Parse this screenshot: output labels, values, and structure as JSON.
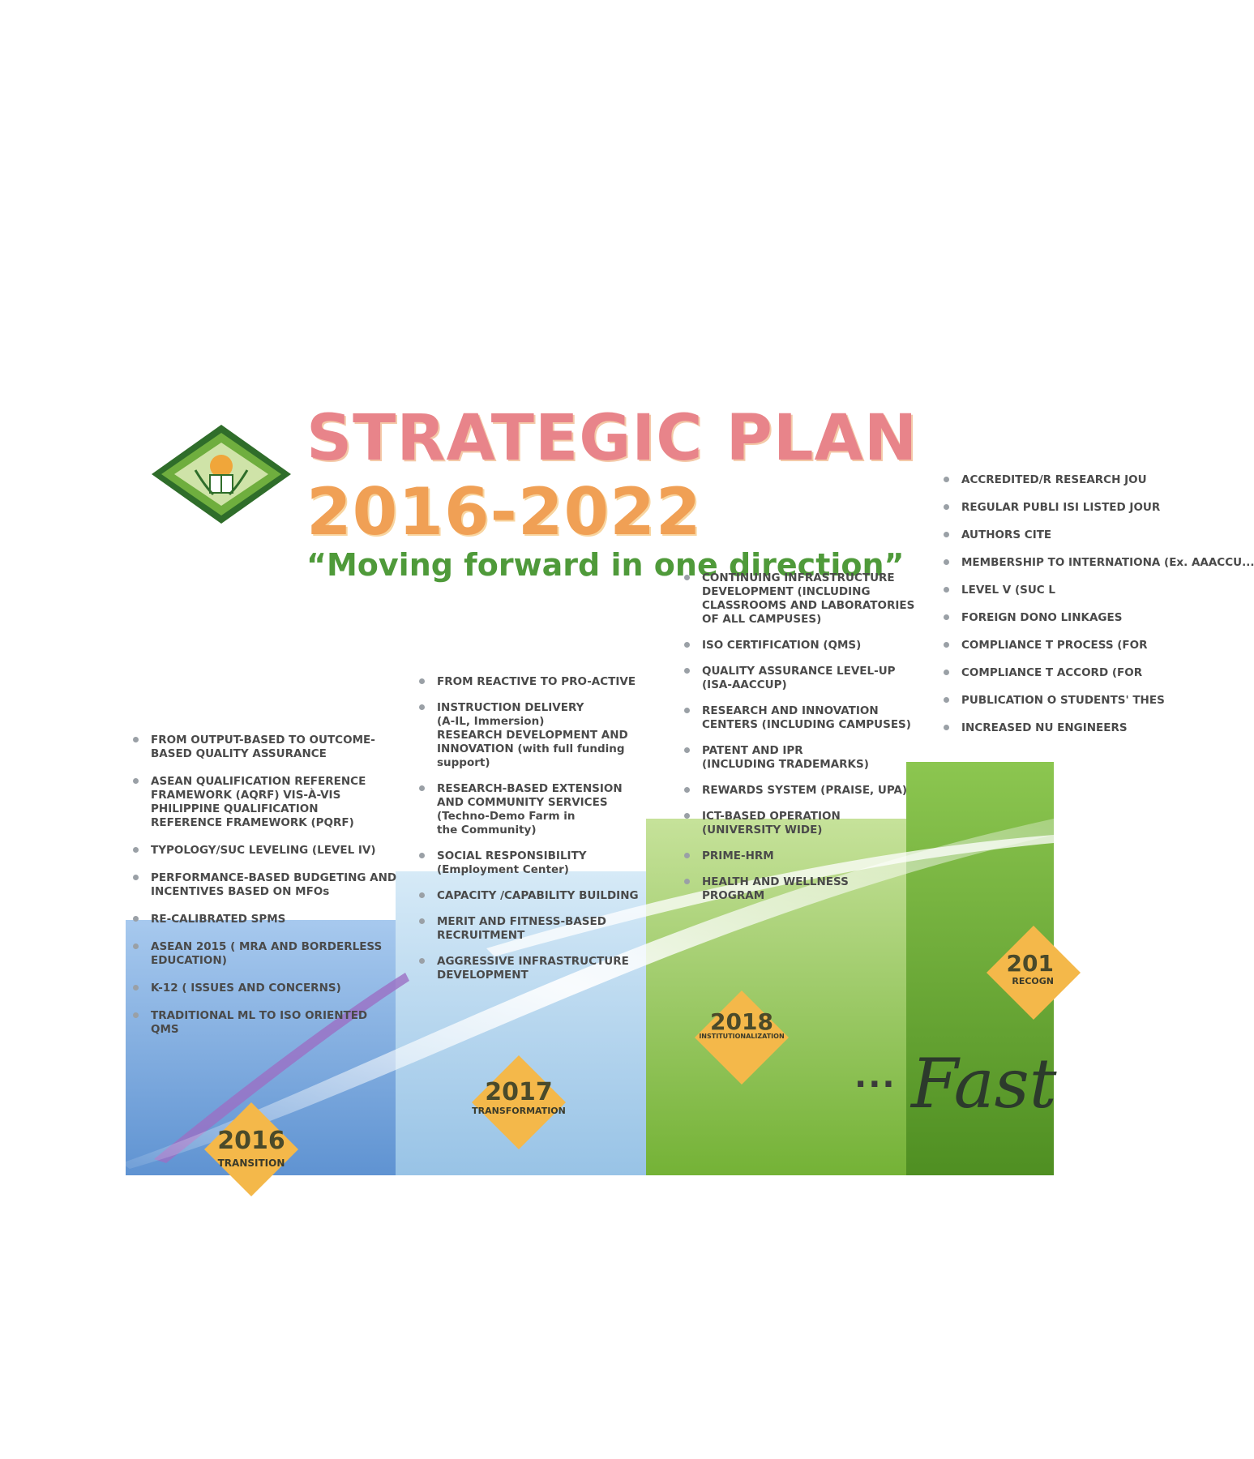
{
  "header": {
    "title_line1": "STRATEGIC PLAN",
    "title_line2": "2016-2022",
    "subtitle": "“Moving forward in one direction”",
    "logo_icon": "university-seal-icon"
  },
  "columns": {
    "y2016": {
      "year": "2016",
      "phase": "TRANSITION",
      "items": [
        "FROM OUTPUT-BASED TO OUTCOME-\nBASED QUALITY ASSURANCE",
        "ASEAN QUALIFICATION REFERENCE\nFRAMEWORK (AQRF) VIS-À-VIS\nPHILIPPINE QUALIFICATION\nREFERENCE FRAMEWORK (PQRF)",
        "TYPOLOGY/SUC LEVELING (LEVEL IV)",
        "PERFORMANCE-BASED BUDGETING AND\nINCENTIVES BASED ON MFOs",
        "RE-CALIBRATED SPMS",
        "ASEAN 2015 ( MRA AND BORDERLESS\nEDUCATION)",
        "K-12 ( ISSUES AND CONCERNS)",
        "TRADITIONAL ML TO ISO ORIENTED QMS"
      ]
    },
    "y2017": {
      "year": "2017",
      "phase": "TRANSFORMATION",
      "items": [
        "FROM REACTIVE TO PRO-ACTIVE",
        "INSTRUCTION DELIVERY\n(A-IL, Immersion)\nRESEARCH DEVELOPMENT AND\nINNOVATION (with full funding\nsupport)",
        "RESEARCH-BASED EXTENSION\nAND COMMUNITY SERVICES\n(Techno-Demo Farm in\nthe Community)",
        "SOCIAL RESPONSIBILITY\n(Employment Center)",
        "CAPACITY /CAPABILITY BUILDING",
        "MERIT AND FITNESS-BASED\nRECRUITMENT",
        "AGGRESSIVE INFRASTRUCTURE\nDEVELOPMENT"
      ]
    },
    "y2018": {
      "year": "2018",
      "phase": "INSTITUTIONALIZATION",
      "items": [
        "CONTINUING INFRASTRUCTURE\nDEVELOPMENT (INCLUDING\nCLASSROOMS AND LABORATORIES\nOF ALL CAMPUSES)",
        "ISO CERTIFICATION (QMS)",
        "QUALITY ASSURANCE LEVEL-UP\n(ISA-AACCUP)",
        "RESEARCH AND INNOVATION\nCENTERS (INCLUDING CAMPUSES)",
        "PATENT AND IPR\n(INCLUDING TRADEMARKS)",
        "REWARDS SYSTEM (PRAISE, UPA)",
        "ICT-BASED OPERATION\n(UNIVERSITY WIDE)",
        "PRIME-HRM",
        "HEALTH AND WELLNESS\nPROGRAM"
      ]
    },
    "y2019": {
      "year": "201",
      "phase": "RECOGN",
      "items": [
        "ACCREDITED/R\nRESEARCH JOU",
        "REGULAR PUBLI\nISI LISTED JOUR",
        "AUTHORS CITE",
        "MEMBERSHIP TO\nINTERNATIONA\n(Ex. AAACCU...",
        "LEVEL V (SUC L",
        "FOREIGN DONO\nLINKAGES",
        "COMPLIANCE T\nPROCESS (FOR",
        "COMPLIANCE T\nACCORD (FOR",
        "PUBLICATION O\nSTUDENTS' THES",
        "INCREASED NU\nENGINEERS"
      ]
    }
  },
  "footer": {
    "ellipsis": "...",
    "fast_text": "Fast"
  },
  "colors": {
    "col2016_block": "#6fa0d8",
    "col2017_block": "#a9cfe9",
    "col2018_block": "#8cc34a",
    "col2019_block": "#5f9e2d",
    "badge_fill": "#f4b84a",
    "title_pink": "#e8848a",
    "title_orange": "#f0a055",
    "subtitle_green": "#4f9a3a"
  }
}
